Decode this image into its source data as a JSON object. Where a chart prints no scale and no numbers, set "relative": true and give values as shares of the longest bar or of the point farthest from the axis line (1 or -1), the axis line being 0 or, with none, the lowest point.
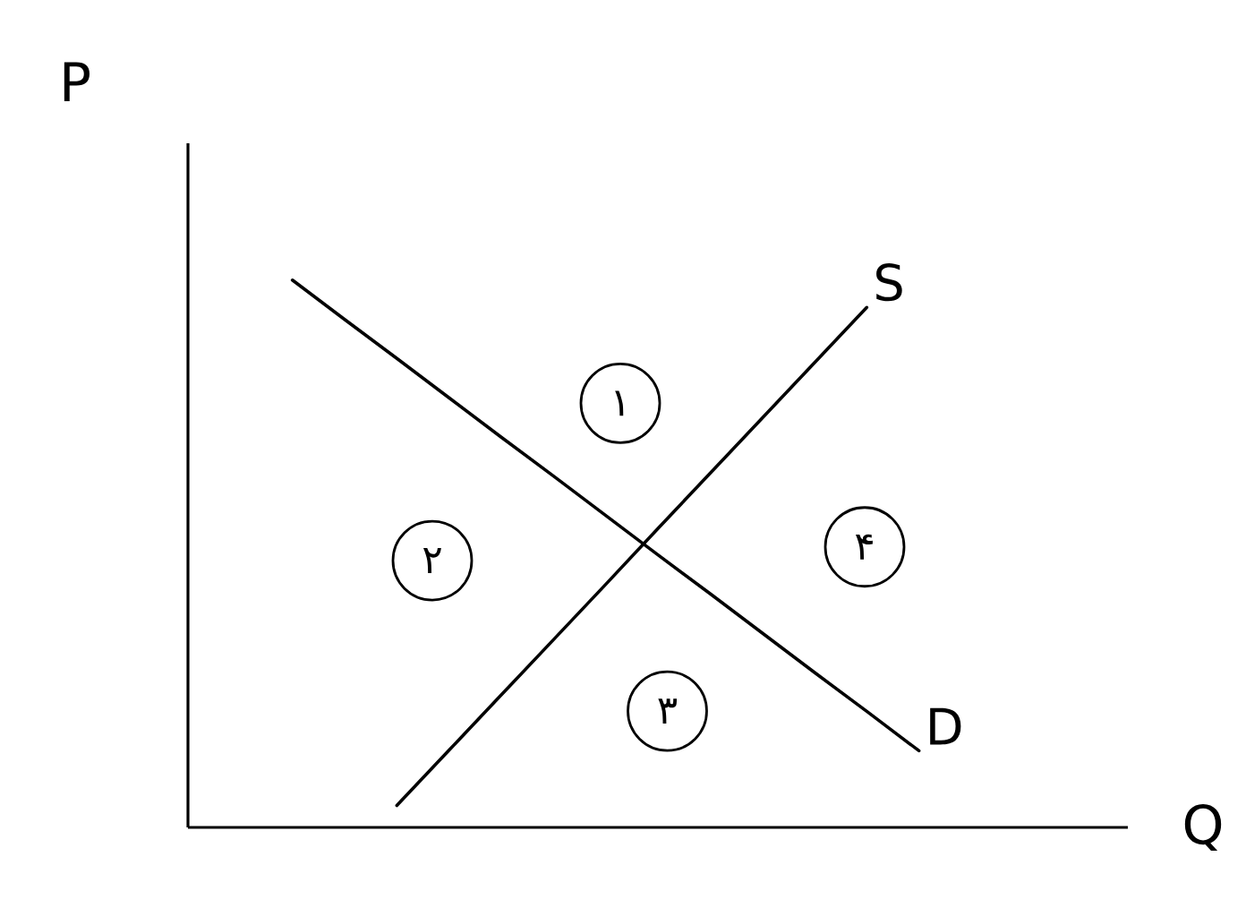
{
  "chart_data": {
    "type": "line",
    "relative": true,
    "xlabel": "Q",
    "ylabel": "P",
    "marker": "none",
    "line_style": "solid",
    "categories": [
      null,
      null,
      null,
      null,
      null,
      null,
      null,
      null,
      null,
      null,
      null,
      null,
      null,
      null,
      null,
      null,
      null,
      null
    ],
    "series": [
      {
        "name": "D",
        "color": "#000000",
        "values": [
          null,
          null,
          1.0,
          0.928,
          0.857,
          0.785,
          0.713,
          0.642,
          0.57,
          0.498,
          0.427,
          0.355,
          0.283,
          0.212,
          0.14,
          null,
          null,
          null
        ]
      },
      {
        "name": "S",
        "color": "#000000",
        "values": [
          null,
          null,
          null,
          null,
          0.04,
          0.141,
          0.242,
          0.343,
          0.444,
          0.546,
          0.647,
          0.748,
          0.849,
          0.95,
          null,
          null,
          null,
          null
        ]
      }
    ],
    "annotations": [
      "۱",
      "۲",
      "۳",
      "۴"
    ]
  }
}
